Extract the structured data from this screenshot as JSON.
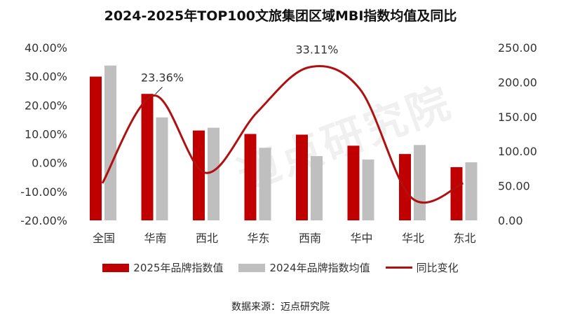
{
  "chart_data": {
    "type": "bar",
    "title": "2024-2025年TOP100文旅集团区域MBI指数均值及同比",
    "categories": [
      "全国",
      "华南",
      "西北",
      "华东",
      "西南",
      "华中",
      "华北",
      "东北"
    ],
    "series": [
      {
        "name": "2025年品牌指数值",
        "axis": "right",
        "type": "bar",
        "color": "#c00000",
        "values": [
          208,
          183,
          130,
          125,
          124,
          108,
          96,
          77
        ]
      },
      {
        "name": "2024年品牌指数均值",
        "axis": "right",
        "type": "bar",
        "color": "#bfbfbf",
        "values": [
          224,
          149,
          134,
          105,
          93,
          88,
          109,
          84
        ]
      },
      {
        "name": "同比变化",
        "axis": "left",
        "type": "line",
        "color": "#b01010",
        "values": [
          -7.1,
          23.36,
          -3.5,
          17.5,
          33.11,
          25.5,
          -12.2,
          -7.1
        ]
      }
    ],
    "data_labels": [
      {
        "category": "华南",
        "text": "23.36%"
      },
      {
        "category": "西南",
        "text": "33.11%"
      }
    ],
    "left_axis": {
      "ylim": [
        -20,
        40
      ],
      "ticks": [
        "40.00%",
        "30.00%",
        "20.00%",
        "10.00%",
        "0.00%",
        "-10.00%",
        "-20.00%"
      ]
    },
    "right_axis": {
      "ylim": [
        0,
        250
      ],
      "ticks": [
        "250.00",
        "200.00",
        "150.00",
        "100.00",
        "50.00",
        "0.00"
      ]
    },
    "grid": false,
    "legend": "bottom"
  },
  "source": "数据来源：迈点研究院",
  "watermark": "迈点研究院"
}
